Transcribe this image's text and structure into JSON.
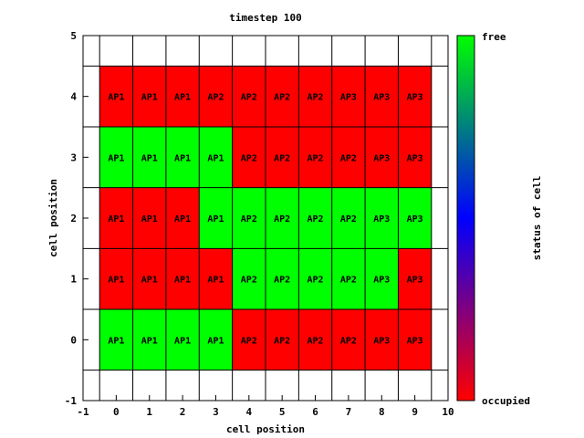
{
  "chart_data": {
    "type": "heatmap",
    "title": "timestep 100",
    "xlabel": "cell position",
    "ylabel": "cell position",
    "xlim": [
      -1,
      10
    ],
    "ylim": [
      -1,
      5
    ],
    "xticks": [
      "-1",
      "0",
      "1",
      "2",
      "3",
      "4",
      "5",
      "6",
      "7",
      "8",
      "9",
      "10"
    ],
    "yticks": [
      "-1",
      "0",
      "1",
      "2",
      "3",
      "4",
      "5"
    ],
    "colorbar": {
      "label": "status of cell",
      "top_label": "free",
      "bottom_label": "occupied",
      "top_color": "#00ff00",
      "bottom_color": "#ff0000"
    },
    "x": [
      0,
      1,
      2,
      3,
      4,
      5,
      6,
      7,
      8,
      9
    ],
    "rows": [
      {
        "y": 4,
        "labels": [
          "AP1",
          "AP1",
          "AP1",
          "AP2",
          "AP2",
          "AP2",
          "AP2",
          "AP3",
          "AP3",
          "AP3"
        ],
        "free": [
          0,
          0,
          0,
          0,
          0,
          0,
          0,
          0,
          0,
          0
        ]
      },
      {
        "y": 3,
        "labels": [
          "AP1",
          "AP1",
          "AP1",
          "AP1",
          "AP2",
          "AP2",
          "AP2",
          "AP2",
          "AP3",
          "AP3"
        ],
        "free": [
          1,
          1,
          1,
          1,
          0,
          0,
          0,
          0,
          0,
          0
        ]
      },
      {
        "y": 2,
        "labels": [
          "AP1",
          "AP1",
          "AP1",
          "AP1",
          "AP2",
          "AP2",
          "AP2",
          "AP2",
          "AP3",
          "AP3"
        ],
        "free": [
          0,
          0,
          0,
          1,
          1,
          1,
          1,
          1,
          1,
          1
        ]
      },
      {
        "y": 1,
        "labels": [
          "AP1",
          "AP1",
          "AP1",
          "AP1",
          "AP2",
          "AP2",
          "AP2",
          "AP2",
          "AP3",
          "AP3"
        ],
        "free": [
          0,
          0,
          0,
          0,
          1,
          1,
          1,
          1,
          1,
          0
        ]
      },
      {
        "y": 0,
        "labels": [
          "AP1",
          "AP1",
          "AP1",
          "AP1",
          "AP2",
          "AP2",
          "AP2",
          "AP2",
          "AP3",
          "AP3"
        ],
        "free": [
          1,
          1,
          1,
          1,
          0,
          0,
          0,
          0,
          0,
          0
        ]
      }
    ]
  }
}
